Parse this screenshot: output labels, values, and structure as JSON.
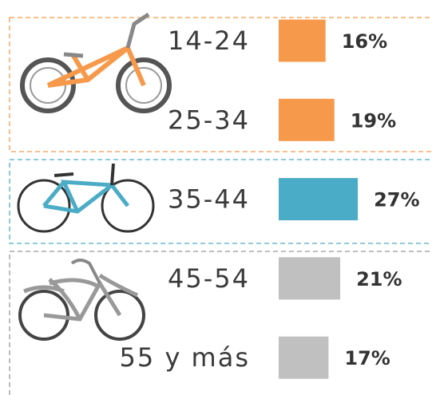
{
  "chart_data": {
    "type": "bar",
    "categories": [
      "14-24",
      "25-34",
      "35-44",
      "45-54",
      "55 y más"
    ],
    "values": [
      16,
      19,
      27,
      21,
      17
    ],
    "value_labels": [
      "16%",
      "19%",
      "27%",
      "21%",
      "17%"
    ],
    "colors": [
      "#f7994a",
      "#f7994a",
      "#4aacc6",
      "#c0c0c0",
      "#c0c0c0"
    ]
  }
}
